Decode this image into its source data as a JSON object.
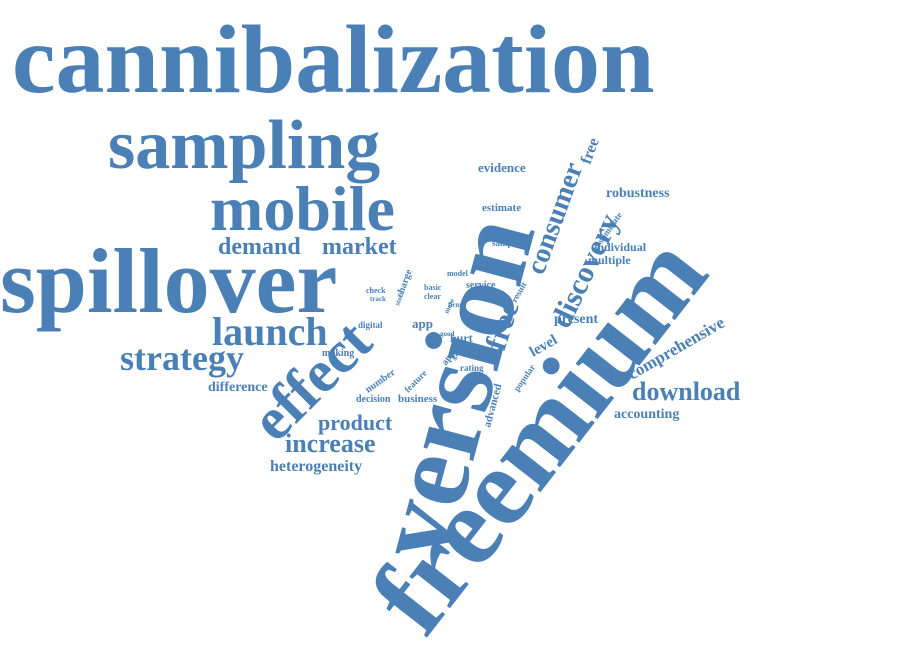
{
  "style": {
    "word_color": "#4a80b5",
    "background": "#ffffff"
  },
  "words": [
    {
      "key": "cannibalization",
      "text": "cannibalization"
    },
    {
      "key": "sampling",
      "text": "sampling"
    },
    {
      "key": "mobile",
      "text": "mobile"
    },
    {
      "key": "spillover",
      "text": "spillover"
    },
    {
      "key": "launch",
      "text": "launch"
    },
    {
      "key": "strategy",
      "text": "strategy"
    },
    {
      "key": "demand",
      "text": "demand"
    },
    {
      "key": "market",
      "text": "market"
    },
    {
      "key": "difference",
      "text": "difference"
    },
    {
      "key": "effect",
      "text": "effect"
    },
    {
      "key": "product",
      "text": "product"
    },
    {
      "key": "increase",
      "text": "increase"
    },
    {
      "key": "heterogeneity",
      "text": "heterogeneity"
    },
    {
      "key": "version",
      "text": "version"
    },
    {
      "key": "freemium",
      "text": "freemium"
    },
    {
      "key": "free_large",
      "text": "free"
    },
    {
      "key": "consumer",
      "text": "consumer"
    },
    {
      "key": "discovery",
      "text": "discovery"
    },
    {
      "key": "free_small",
      "text": "free"
    },
    {
      "key": "evidence",
      "text": "evidence"
    },
    {
      "key": "estimate",
      "text": "estimate"
    },
    {
      "key": "robustness",
      "text": "robustness"
    },
    {
      "key": "stimulate",
      "text": "stimulate"
    },
    {
      "key": "sample",
      "text": "sample"
    },
    {
      "key": "individual",
      "text": "individual"
    },
    {
      "key": "multiple",
      "text": "multiple"
    },
    {
      "key": "result",
      "text": "result"
    },
    {
      "key": "present",
      "text": "present"
    },
    {
      "key": "comprehensive",
      "text": "comprehensive"
    },
    {
      "key": "download",
      "text": "download"
    },
    {
      "key": "accounting",
      "text": "accounting"
    },
    {
      "key": "level",
      "text": "level"
    },
    {
      "key": "popular",
      "text": "popular"
    },
    {
      "key": "data",
      "text": "data"
    },
    {
      "key": "hurt",
      "text": "hurt"
    },
    {
      "key": "rating",
      "text": "rating"
    },
    {
      "key": "advanced",
      "text": "advanced"
    },
    {
      "key": "business",
      "text": "business"
    },
    {
      "key": "decision",
      "text": "decision"
    },
    {
      "key": "number",
      "text": "number"
    },
    {
      "key": "feature",
      "text": "feature"
    },
    {
      "key": "game",
      "text": "game"
    },
    {
      "key": "apple",
      "text": "apple"
    },
    {
      "key": "good",
      "text": "good"
    },
    {
      "key": "app",
      "text": "app"
    },
    {
      "key": "digital",
      "text": "digital"
    },
    {
      "key": "making",
      "text": "making"
    },
    {
      "key": "service",
      "text": "service"
    },
    {
      "key": "model",
      "text": "model"
    },
    {
      "key": "basic",
      "text": "basic"
    },
    {
      "key": "clear",
      "text": "clear"
    },
    {
      "key": "check",
      "text": "check"
    },
    {
      "key": "track",
      "text": "track"
    },
    {
      "key": "store",
      "text": "store"
    },
    {
      "key": "charge",
      "text": "charge"
    },
    {
      "key": "firm",
      "text": "firm"
    },
    {
      "key": "more",
      "text": "more"
    }
  ]
}
